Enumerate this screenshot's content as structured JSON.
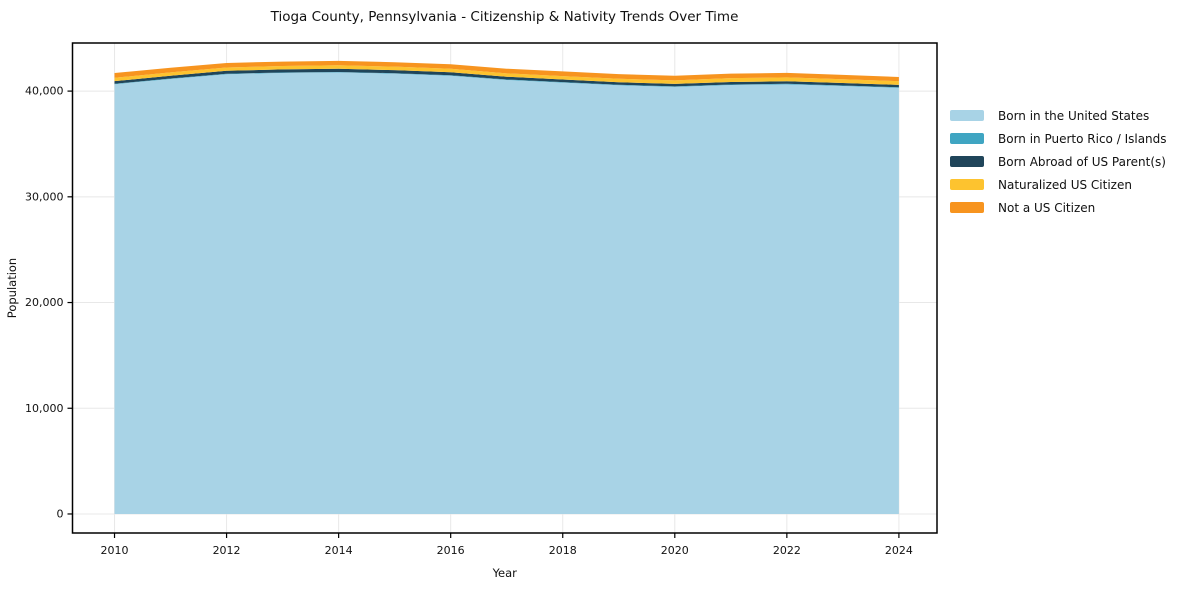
{
  "title": "Tioga County, Pennsylvania - Citizenship & Nativity Trends Over Time",
  "chart_data": {
    "type": "area",
    "stacked": true,
    "title": "Tioga County, Pennsylvania - Citizenship & Nativity Trends Over Time",
    "xlabel": "Year",
    "ylabel": "Population",
    "x": [
      2010,
      2011,
      2012,
      2013,
      2014,
      2015,
      2016,
      2017,
      2018,
      2019,
      2020,
      2021,
      2022,
      2023,
      2024
    ],
    "series": [
      {
        "name": "Born in the United States",
        "color": "#a8d3e6",
        "values": [
          40650,
          41150,
          41600,
          41720,
          41770,
          41650,
          41450,
          41050,
          40800,
          40550,
          40400,
          40580,
          40640,
          40480,
          40310
        ]
      },
      {
        "name": "Born in Puerto Rico / Islands",
        "color": "#3fa5c2",
        "values": [
          40,
          40,
          40,
          40,
          40,
          40,
          50,
          50,
          50,
          50,
          50,
          50,
          50,
          50,
          50
        ]
      },
      {
        "name": "Born Abroad of US Parent(s)",
        "color": "#20455a",
        "values": [
          250,
          260,
          280,
          290,
          300,
          290,
          280,
          260,
          250,
          240,
          230,
          235,
          240,
          235,
          230
        ]
      },
      {
        "name": "Naturalized US Citizen",
        "color": "#fdc32f",
        "values": [
          320,
          320,
          310,
          320,
          330,
          330,
          330,
          320,
          320,
          330,
          340,
          360,
          370,
          360,
          350
        ]
      },
      {
        "name": "Not a US Citizen",
        "color": "#f7941f",
        "values": [
          450,
          440,
          430,
          420,
          420,
          420,
          430,
          440,
          450,
          440,
          430,
          430,
          420,
          410,
          400
        ]
      }
    ],
    "xlim": [
      2009.25,
      2024.68
    ],
    "ylim": [
      -1800,
      44550
    ],
    "xticks": [
      {
        "v": 2010,
        "label": "2010"
      },
      {
        "v": 2012,
        "label": "2012"
      },
      {
        "v": 2014,
        "label": "2014"
      },
      {
        "v": 2016,
        "label": "2016"
      },
      {
        "v": 2018,
        "label": "2018"
      },
      {
        "v": 2020,
        "label": "2020"
      },
      {
        "v": 2022,
        "label": "2022"
      },
      {
        "v": 2024,
        "label": "2024"
      }
    ],
    "yticks": [
      {
        "v": 0,
        "label": "0"
      },
      {
        "v": 10000,
        "label": "10,000"
      },
      {
        "v": 20000,
        "label": "20,000"
      },
      {
        "v": 30000,
        "label": "30,000"
      },
      {
        "v": 40000,
        "label": "40,000"
      }
    ],
    "grid": true,
    "legend_position": "right"
  },
  "style": {
    "grid_color": "#e8e8e8",
    "spine_color": "#000000",
    "background": "#ffffff"
  }
}
